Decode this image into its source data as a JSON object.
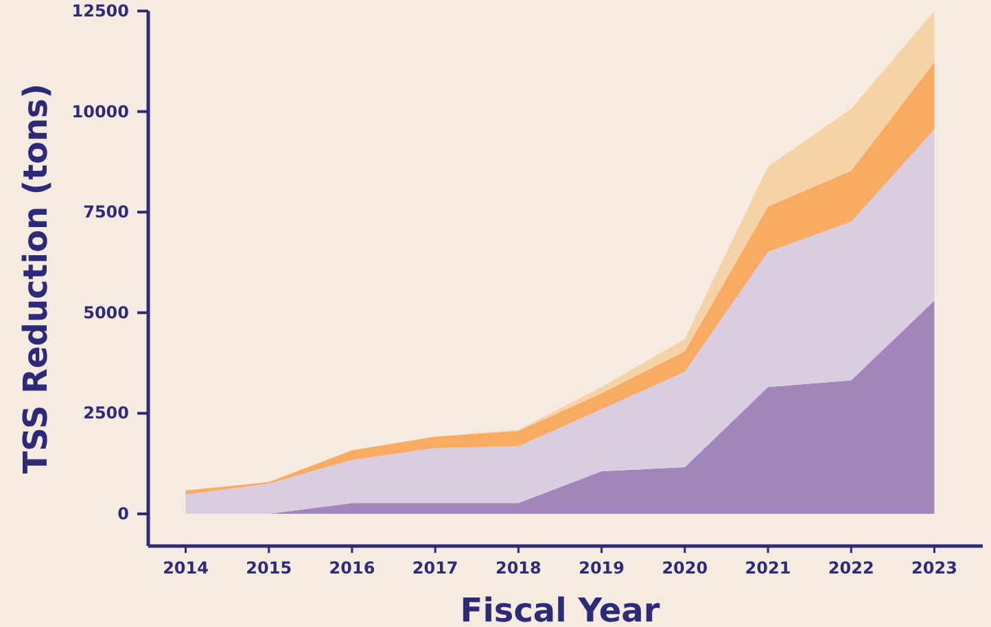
{
  "chart_data": {
    "type": "area",
    "stacked": true,
    "xlabel": "Fiscal Year",
    "ylabel": "TSS Reduction (tons)",
    "categories": [
      "2014",
      "2015",
      "2016",
      "2017",
      "2018",
      "2019",
      "2020",
      "2021",
      "2022",
      "2023"
    ],
    "series": [
      {
        "color": "#a186bc",
        "values": [
          0,
          0,
          270,
          270,
          270,
          1060,
          1160,
          3150,
          3320,
          5300
        ]
      },
      {
        "color": "#dacde2",
        "values": [
          480,
          750,
          1070,
          1370,
          1410,
          1540,
          2370,
          3360,
          3940,
          4260
        ]
      },
      {
        "color": "#f8ab62",
        "values": [
          100,
          40,
          240,
          280,
          380,
          400,
          510,
          1130,
          1270,
          1670
        ]
      },
      {
        "color": "#f6d2a7",
        "values": [
          0,
          0,
          0,
          0,
          30,
          150,
          310,
          990,
          1540,
          1270
        ]
      }
    ],
    "ylim": [
      -800,
      12500
    ],
    "yticks": [
      0,
      2500,
      5000,
      7500,
      10000,
      12500
    ],
    "grid": false
  }
}
